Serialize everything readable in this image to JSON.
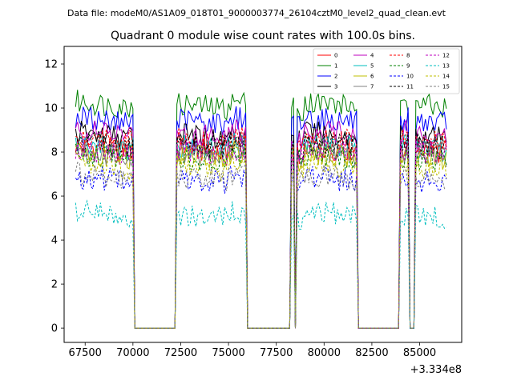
{
  "header": {
    "data_file_line": "Data file: modeM0/AS1A09_018T01_9000003774_26104cztM0_level2_quad_clean.evt"
  },
  "chart_data": {
    "type": "line",
    "title": "Quadrant 0 module wise count rates with 100.0s bins.",
    "xlabel": "",
    "ylabel": "",
    "x_offset_label": "+3.334e8",
    "xlim": [
      66400,
      87200
    ],
    "ylim": [
      -0.65,
      12.8
    ],
    "x_ticks": [
      67500,
      70000,
      72500,
      75000,
      77500,
      80000,
      82500,
      85000
    ],
    "x_tick_labels": [
      "67500",
      "70000",
      "72500",
      "75000",
      "77500",
      "80000",
      "82500",
      "85000"
    ],
    "y_ticks": [
      0,
      2,
      4,
      6,
      8,
      10,
      12
    ],
    "y_tick_labels": [
      "0",
      "2",
      "4",
      "6",
      "8",
      "10",
      "12"
    ],
    "legend_position": "top-right",
    "bin_seconds": 100,
    "active_intervals": [
      [
        67000,
        70000
      ],
      [
        72300,
        75950
      ],
      [
        78300,
        78450
      ],
      [
        78600,
        81750
      ],
      [
        84000,
        84400
      ],
      [
        84800,
        86450
      ]
    ],
    "series": [
      {
        "name": "0",
        "color": "#ff0000",
        "dash": "solid",
        "mean": 8.3
      },
      {
        "name": "1",
        "color": "#008000",
        "dash": "solid",
        "mean": 10.3
      },
      {
        "name": "2",
        "color": "#0000ff",
        "dash": "solid",
        "mean": 9.6
      },
      {
        "name": "3",
        "color": "#000000",
        "dash": "solid",
        "mean": 8.9
      },
      {
        "name": "4",
        "color": "#bf00bf",
        "dash": "solid",
        "mean": 9.0
      },
      {
        "name": "5",
        "color": "#00bfbf",
        "dash": "solid",
        "mean": 8.4
      },
      {
        "name": "6",
        "color": "#bfbf00",
        "dash": "solid",
        "mean": 8.0
      },
      {
        "name": "7",
        "color": "#808080",
        "dash": "solid",
        "mean": 8.1
      },
      {
        "name": "8",
        "color": "#ff0000",
        "dash": "dashed",
        "mean": 8.7
      },
      {
        "name": "9",
        "color": "#008000",
        "dash": "dashed",
        "mean": 7.9
      },
      {
        "name": "10",
        "color": "#0000ff",
        "dash": "dashed",
        "mean": 6.9
      },
      {
        "name": "11",
        "color": "#000000",
        "dash": "dashed",
        "mean": 8.5
      },
      {
        "name": "12",
        "color": "#bf00bf",
        "dash": "dashed",
        "mean": 8.2
      },
      {
        "name": "13",
        "color": "#00bfbf",
        "dash": "dashed",
        "mean": 5.3
      },
      {
        "name": "14",
        "color": "#bfbf00",
        "dash": "dashed",
        "mean": 7.5
      },
      {
        "name": "15",
        "color": "#808080",
        "dash": "dashed",
        "mean": 7.0
      }
    ]
  }
}
